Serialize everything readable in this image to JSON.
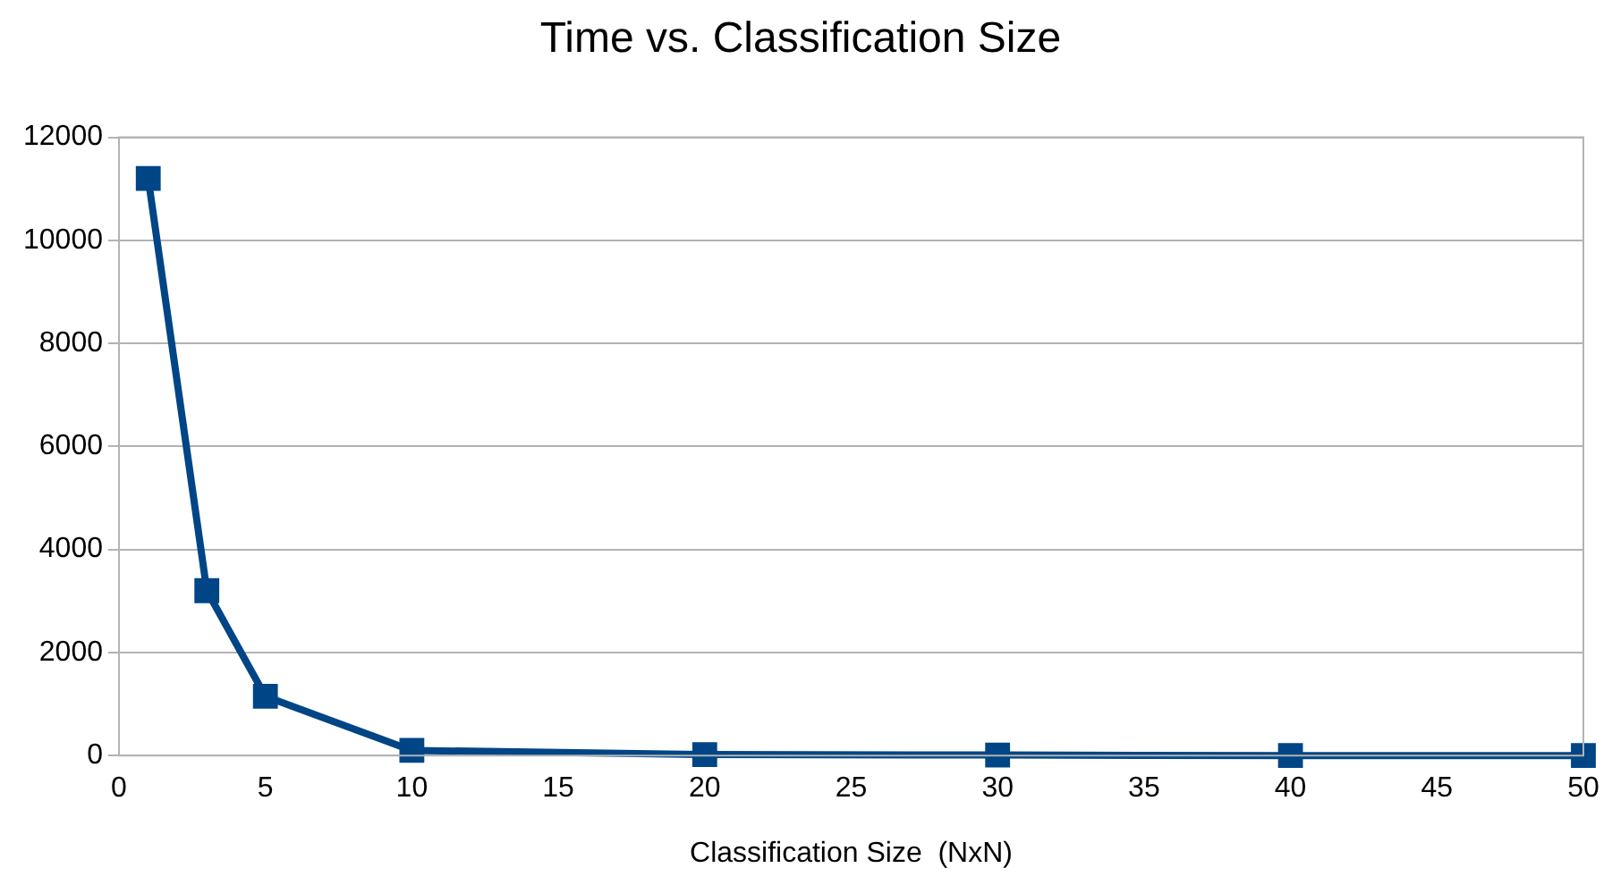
{
  "chart_data": {
    "type": "line",
    "title": "Time vs. Classification Size",
    "xlabel": "Classification Size  (NxN)",
    "x": [
      1,
      3,
      5,
      10,
      20,
      30,
      40,
      50
    ],
    "series": [
      {
        "color": "#004586",
        "values": [
          11200,
          3200,
          1150,
          100,
          20,
          10,
          0,
          0
        ]
      }
    ],
    "xlim": [
      0,
      50
    ],
    "xticks": [
      0,
      5,
      10,
      15,
      20,
      25,
      30,
      35,
      40,
      45,
      50
    ],
    "ylim": [
      0,
      12000
    ],
    "yticks": [
      0,
      2000,
      4000,
      6000,
      8000,
      10000,
      12000
    ],
    "grid": "y",
    "legend": false,
    "marker": "square",
    "line_style": "solid"
  }
}
